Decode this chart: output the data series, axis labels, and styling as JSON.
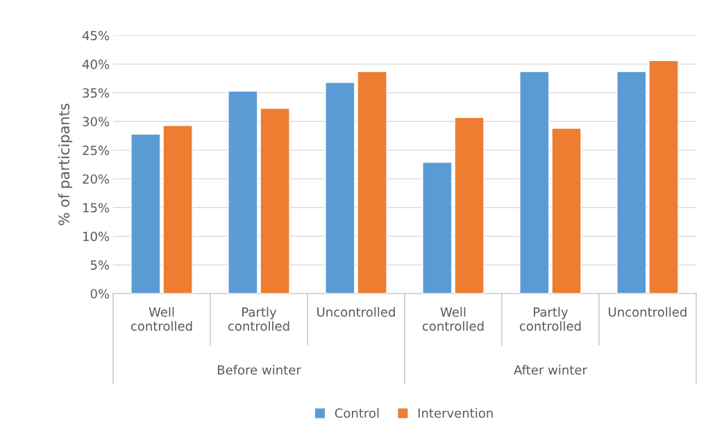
{
  "chart_data": {
    "type": "bar",
    "ylabel": "% of participants",
    "categories": [
      "Well\ncontrolled",
      "Partly\ncontrolled",
      "Uncontrolled",
      "Well\ncontrolled",
      "Partly\ncontrolled",
      "Uncontrolled"
    ],
    "series": [
      {
        "name": "Control",
        "color": "#5b9bd5",
        "values": [
          27.8,
          35.3,
          36.8,
          22.9,
          38.7,
          38.7
        ]
      },
      {
        "name": "Intervention",
        "color": "#ed7d31",
        "values": [
          29.3,
          32.3,
          38.7,
          30.7,
          28.8,
          40.6
        ]
      }
    ],
    "annotations": [
      "Before winter",
      "After winter"
    ],
    "ylim": [
      0,
      45
    ],
    "yticks": [
      {
        "value": 0,
        "label": "0%"
      },
      {
        "value": 5,
        "label": "5%"
      },
      {
        "value": 10,
        "label": "10%"
      },
      {
        "value": 15,
        "label": "15%"
      },
      {
        "value": 20,
        "label": "20%"
      },
      {
        "value": 25,
        "label": "25%"
      },
      {
        "value": 30,
        "label": "30%"
      },
      {
        "value": 35,
        "label": "35%"
      },
      {
        "value": 40,
        "label": "40%"
      },
      {
        "value": 45,
        "label": "45%"
      }
    ],
    "grid": "y",
    "legend": "bottom"
  }
}
